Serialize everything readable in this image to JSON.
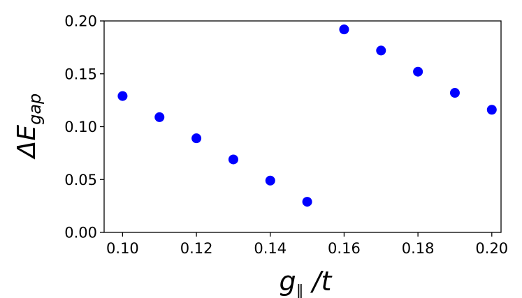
{
  "chart_data": {
    "type": "scatter",
    "title": "",
    "xlabel": {
      "main": "g",
      "sub": "∥",
      "rest": " /t"
    },
    "ylabel": {
      "main": "ΔE",
      "sub": "gap"
    },
    "xlim": [
      0.095,
      0.2025
    ],
    "ylim": [
      0.0,
      0.2
    ],
    "x_ticks": [
      "0.10",
      "0.12",
      "0.14",
      "0.16",
      "0.18",
      "0.20"
    ],
    "y_ticks": [
      "0.00",
      "0.05",
      "0.10",
      "0.15",
      "0.20"
    ],
    "grid": false,
    "legend": "none",
    "marker_color": "#0000ff",
    "series": [
      {
        "x": [
          0.1,
          0.11,
          0.12,
          0.13,
          0.14,
          0.15,
          0.16,
          0.17,
          0.18,
          0.19,
          0.2
        ],
        "y": [
          0.129,
          0.109,
          0.089,
          0.069,
          0.049,
          0.029,
          0.192,
          0.172,
          0.152,
          0.132,
          0.116
        ]
      }
    ]
  }
}
